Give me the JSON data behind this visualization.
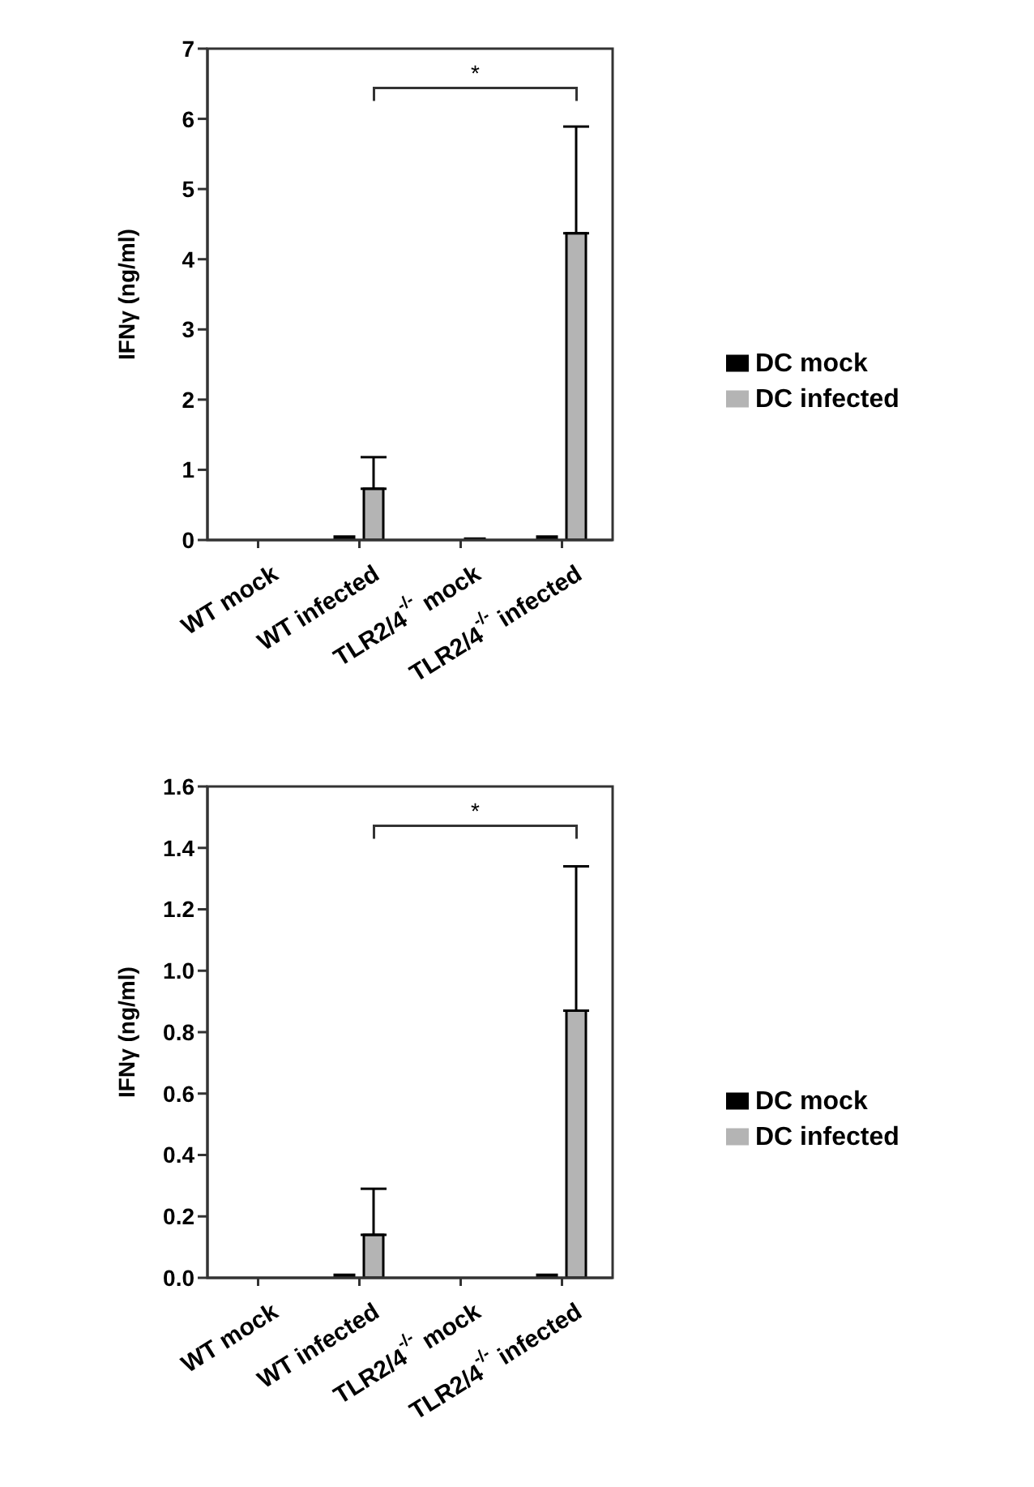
{
  "chart_data": [
    {
      "type": "bar",
      "ylabel": "IFNγ (ng/ml)",
      "categories": [
        "WT mock",
        "WT infected",
        "TLR2/4$^{-/-}$ mock",
        "TLR2/4$^{-/-}$ infected"
      ],
      "series": [
        {
          "name": "DC mock",
          "color": "#000000",
          "values": [
            0,
            0.05,
            0,
            0.05
          ]
        },
        {
          "name": "DC infected",
          "color": "#b4b4b4",
          "values": [
            0,
            0.73,
            0.02,
            4.37
          ],
          "errors": [
            null,
            [
              0.73,
              1.18
            ],
            null,
            [
              4.37,
              5.89
            ]
          ]
        }
      ],
      "ylim": [
        0,
        7
      ],
      "yticks": [
        0,
        1,
        2,
        3,
        4,
        5,
        6,
        7
      ],
      "grid": false,
      "legend": "right",
      "annotations": [
        "*"
      ]
    },
    {
      "type": "bar",
      "ylabel": "IFNγ (ng/ml)",
      "categories": [
        "WT mock",
        "WT infected",
        "TLR2/4$^{-/-}$ mock",
        "TLR2/4$^{-/-}$ infected"
      ],
      "series": [
        {
          "name": "DC mock",
          "color": "#000000",
          "values": [
            0,
            0.01,
            0,
            0.01
          ]
        },
        {
          "name": "DC infected",
          "color": "#b4b4b4",
          "values": [
            0,
            0.14,
            0,
            0.87
          ],
          "errors": [
            null,
            [
              0.14,
              0.29
            ],
            null,
            [
              0.87,
              1.34
            ]
          ]
        }
      ],
      "ylim": [
        0,
        1.6
      ],
      "yticks": [
        {
          "value": 0,
          "label": "0.0"
        },
        0.2,
        0.4,
        0.6,
        0.8,
        {
          "value": 1,
          "label": "1.0"
        },
        1.2,
        1.4,
        1.6
      ],
      "grid": false,
      "legend": "right",
      "annotations": [
        "*"
      ]
    }
  ]
}
